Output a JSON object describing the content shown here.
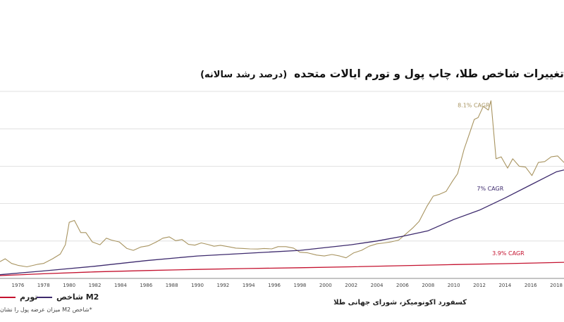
{
  "chart_data": {
    "type": "line",
    "title": "تغییرات شاخص طلا، چاپ پول و تورم ایالات متحده",
    "subtitle": "(درصد رشد سالانه)",
    "xlim": [
      1974.6,
      2018.6
    ],
    "ylim": [
      0,
      1000
    ],
    "grid": true,
    "x_ticks": [
      "1976",
      "1978",
      "1980",
      "1982",
      "1984",
      "1986",
      "1988",
      "1990",
      "1992",
      "1994",
      "1996",
      "1998",
      "2000",
      "2002",
      "2004",
      "2006",
      "2008",
      "2010",
      "2012",
      "2014",
      "2016",
      "2018"
    ],
    "series": [
      {
        "name": "طلا",
        "color": "#a89460",
        "label": "8.1% CAGR",
        "x": [
          1974.6,
          1975.0,
          1975.5,
          1976.0,
          1976.7,
          1977.5,
          1978.0,
          1978.7,
          1979.3,
          1979.7,
          1980.0,
          1980.4,
          1980.9,
          1981.3,
          1981.8,
          1982.4,
          1982.9,
          1983.3,
          1983.9,
          1984.5,
          1985.0,
          1985.6,
          1986.2,
          1986.8,
          1987.3,
          1987.8,
          1988.3,
          1988.8,
          1989.3,
          1989.8,
          1990.3,
          1990.8,
          1991.3,
          1991.8,
          1992.4,
          1993.0,
          1993.6,
          1994.1,
          1994.7,
          1995.2,
          1995.8,
          1996.3,
          1996.9,
          1997.5,
          1998.0,
          1998.6,
          1999.3,
          1999.9,
          2000.5,
          2001.1,
          2001.6,
          2002.2,
          2002.8,
          2003.4,
          2004.0,
          2004.6,
          2005.1,
          2005.7,
          2006.3,
          2006.8,
          2007.3,
          2007.9,
          2008.4,
          2008.9,
          2009.4,
          2009.9,
          2010.3,
          2010.8,
          2011.2,
          2011.6,
          2011.9,
          2012.3,
          2012.7,
          2012.9,
          2013.3,
          2013.7,
          2014.2,
          2014.6,
          2015.1,
          2015.6,
          2016.1,
          2016.6,
          2017.1,
          2017.6,
          2018.1,
          2018.6
        ],
        "values": [
          90,
          105,
          80,
          70,
          62,
          75,
          80,
          105,
          130,
          180,
          300,
          310,
          245,
          245,
          195,
          180,
          215,
          205,
          195,
          160,
          150,
          168,
          175,
          195,
          215,
          222,
          202,
          208,
          182,
          178,
          190,
          182,
          172,
          177,
          170,
          162,
          160,
          158,
          157,
          160,
          158,
          170,
          170,
          162,
          140,
          137,
          125,
          120,
          128,
          120,
          110,
          137,
          150,
          172,
          185,
          190,
          195,
          205,
          240,
          270,
          305,
          385,
          440,
          450,
          465,
          520,
          560,
          690,
          770,
          850,
          860,
          920,
          900,
          950,
          640,
          650,
          590,
          640,
          600,
          595,
          550,
          620,
          625,
          650,
          655,
          620
        ]
      },
      {
        "name": "شاخص M2",
        "color": "#3d2a6d",
        "label": "7% CAGR",
        "x": [
          1974.6,
          1978,
          1982,
          1986,
          1990,
          1994,
          1998,
          2002,
          2004,
          2006,
          2008,
          2010,
          2012,
          2014,
          2016,
          2018,
          2018.6
        ],
        "values": [
          20,
          40,
          65,
          95,
          120,
          135,
          150,
          180,
          200,
          225,
          255,
          315,
          365,
          430,
          500,
          570,
          580
        ]
      },
      {
        "name": "تورم",
        "color": "#c4122f",
        "label": "3.9% CAGR",
        "x": [
          1974.6,
          1978,
          1982,
          1986,
          1990,
          1994,
          1998,
          2002,
          2006,
          2010,
          2014,
          2018,
          2018.6
        ],
        "values": [
          15,
          25,
          35,
          42,
          48,
          53,
          57,
          62,
          68,
          74,
          79,
          85,
          86
        ]
      }
    ]
  },
  "legend": {
    "inflation": "تورم",
    "m2": "شاخص M2"
  },
  "footnote": "*شاخص M2 میزان عرضه پول را نشان",
  "source": "کسفورد اکونومیکز، شورای جهانی طلا"
}
